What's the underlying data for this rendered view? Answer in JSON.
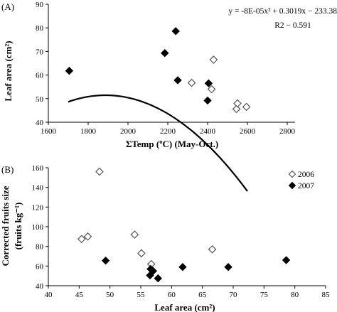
{
  "chart_data": [
    {
      "type": "scatter",
      "panel_label": "(A)",
      "xlabel": "ΣTemp (ºC) (May-Oct.)",
      "ylabel": "Leaf area (cm²)",
      "xlim": [
        1600,
        2800
      ],
      "ylim": [
        40,
        90
      ],
      "xticks": [
        "1600",
        "1800",
        "2000",
        "2200",
        "2400",
        "2600",
        "2800"
      ],
      "yticks": [
        "40",
        "50",
        "60",
        "70",
        "80",
        "90"
      ],
      "series": [
        {
          "marker": "diamond-open",
          "points": [
            [
              2320,
              56.7
            ],
            [
              2420,
              54.0
            ],
            [
              2430,
              66.5
            ],
            [
              2545,
              45.6
            ],
            [
              2550,
              48.0
            ],
            [
              2595,
              46.5
            ]
          ]
        },
        {
          "marker": "diamond-filled",
          "points": [
            [
              1705,
              61.8
            ],
            [
              2185,
              69.3
            ],
            [
              2240,
              78.6
            ],
            [
              2250,
              57.8
            ],
            [
              2400,
              49.2
            ],
            [
              2405,
              56.5
            ]
          ]
        }
      ],
      "trendline": {
        "type": "polynomial",
        "equation": "y = -8E-05x² + 0.3019x − 233.38",
        "r2": "R2 − 0.591",
        "coefficients": [
          -8e-05,
          0.3019,
          -233.38
        ],
        "x_range": [
          1700,
          2600
        ]
      }
    },
    {
      "type": "scatter",
      "panel_label": "(B)",
      "xlabel": "Leaf area (cm²)",
      "ylabel_line1": "Corrected fruits size",
      "ylabel_line2": "(fruits kg⁻¹)",
      "xlim": [
        40,
        85
      ],
      "ylim": [
        40,
        160
      ],
      "xticks": [
        "40",
        "45",
        "50",
        "55",
        "60",
        "65",
        "70",
        "75",
        "80",
        "85"
      ],
      "yticks": [
        "40",
        "60",
        "80",
        "100",
        "120",
        "140",
        "160"
      ],
      "series": [
        {
          "name": "2006",
          "marker": "diamond-open",
          "points": [
            [
              45.4,
              87.5
            ],
            [
              46.4,
              90.0
            ],
            [
              48.3,
              156.0
            ],
            [
              54.0,
              92.0
            ],
            [
              55.1,
              73.0
            ],
            [
              56.7,
              62.0
            ],
            [
              66.6,
              77.0
            ]
          ]
        },
        {
          "name": "2007",
          "marker": "diamond-filled",
          "points": [
            [
              49.3,
              65.5
            ],
            [
              56.5,
              50.5
            ],
            [
              56.6,
              57.0
            ],
            [
              57.0,
              55.0
            ],
            [
              57.8,
              47.5
            ],
            [
              61.8,
              59.0
            ],
            [
              69.2,
              59.0
            ],
            [
              78.6,
              66.0
            ]
          ]
        }
      ]
    }
  ]
}
